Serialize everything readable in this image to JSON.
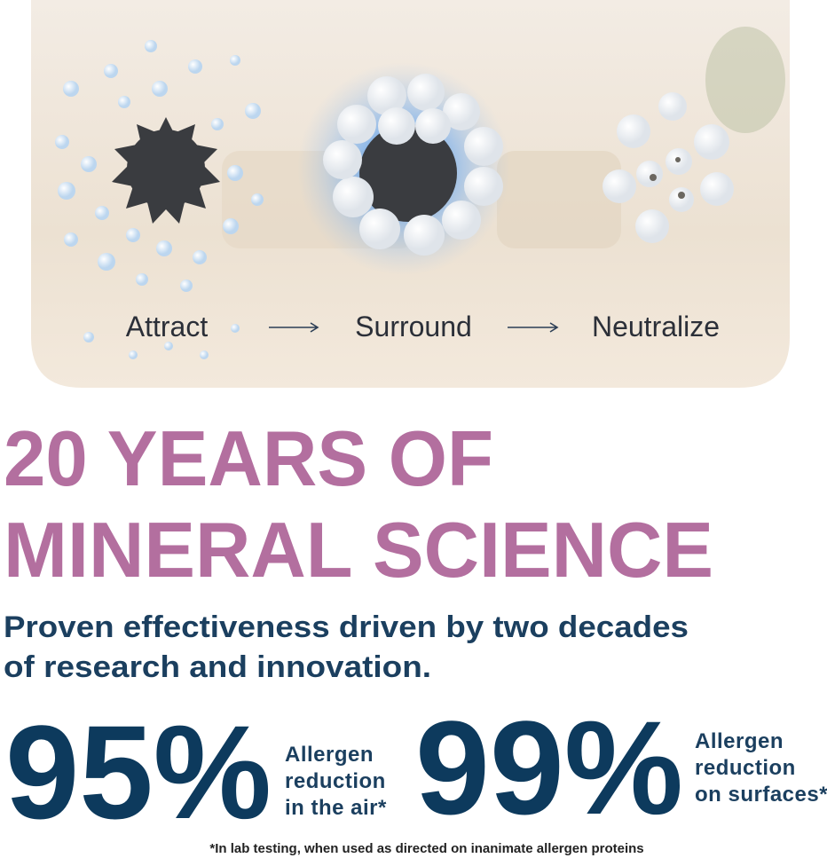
{
  "illustration": {
    "steps": [
      "Attract",
      "Surround",
      "Neutralize"
    ]
  },
  "headline": [
    "20 YEARS OF",
    "MINERAL SCIENCE"
  ],
  "subheading": [
    "Proven effectiveness driven by two decades",
    "of research and innovation."
  ],
  "stats": [
    {
      "value": "95%",
      "label": [
        "Allergen",
        "reduction",
        "in the air*"
      ]
    },
    {
      "value": "99%",
      "label": [
        "Allergen",
        "reduction",
        "on surfaces*"
      ]
    }
  ],
  "footnote": "*In lab testing, when used as directed on inanimate allergen proteins"
}
